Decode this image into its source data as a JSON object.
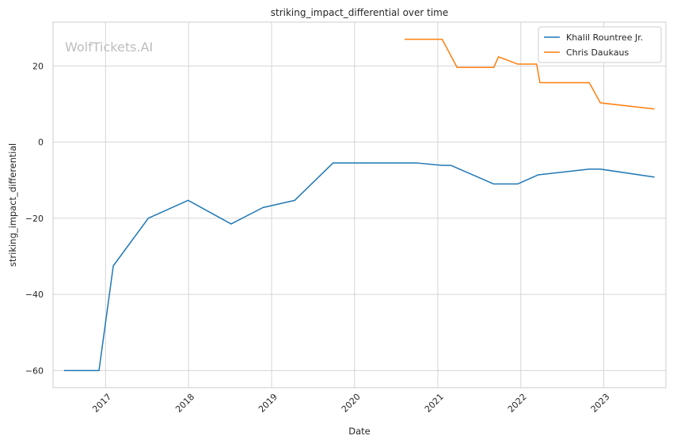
{
  "chart_data": {
    "type": "line",
    "title": "striking_impact_differential over time",
    "xlabel": "Date",
    "ylabel": "striking_impact_differential",
    "watermark": "WolfTickets.AI",
    "xlim": [
      "2016-05-15",
      "2023-10-01"
    ],
    "ylim": [
      -64.5,
      31.5
    ],
    "x_ticks": [
      "2017-01-01",
      "2018-01-01",
      "2019-01-01",
      "2020-01-01",
      "2021-01-01",
      "2022-01-01",
      "2023-01-01"
    ],
    "x_tick_labels": [
      "2017",
      "2018",
      "2019",
      "2020",
      "2021",
      "2022",
      "2023"
    ],
    "y_ticks": [
      -60,
      -40,
      -20,
      0,
      20
    ],
    "y_tick_labels": [
      "−60",
      "−40",
      "−20",
      "0",
      "20"
    ],
    "grid": true,
    "legend_position": "top-right",
    "colors": {
      "series_1": "#1f77b4",
      "series_2": "#ff7f0e",
      "grid": "#d5d5d5",
      "axes_edge": "#cccccc",
      "watermark": "#bdbdbd"
    },
    "series": [
      {
        "name": "Khalil Rountree Jr.",
        "points": [
          [
            "2016-07-02",
            -60.0
          ],
          [
            "2016-12-03",
            -60.0
          ],
          [
            "2017-02-04",
            -32.5
          ],
          [
            "2017-07-08",
            -20.0
          ],
          [
            "2017-12-30",
            -15.3
          ],
          [
            "2018-07-07",
            -21.5
          ],
          [
            "2018-11-24",
            -17.2
          ],
          [
            "2019-04-13",
            -15.3
          ],
          [
            "2019-09-28",
            -5.5
          ],
          [
            "2020-10-03",
            -5.5
          ],
          [
            "2021-01-20",
            -6.1
          ],
          [
            "2021-02-27",
            -6.1
          ],
          [
            "2021-09-04",
            -11.0
          ],
          [
            "2021-12-18",
            -11.0
          ],
          [
            "2022-03-19",
            -8.6
          ],
          [
            "2022-10-29",
            -7.1
          ],
          [
            "2022-12-17",
            -7.1
          ],
          [
            "2023-08-12",
            -9.2
          ]
        ]
      },
      {
        "name": "Chris Daukaus",
        "points": [
          [
            "2020-08-08",
            27.0
          ],
          [
            "2021-01-20",
            27.0
          ],
          [
            "2021-03-27",
            19.6
          ],
          [
            "2021-09-04",
            19.6
          ],
          [
            "2021-09-25",
            22.4
          ],
          [
            "2021-12-18",
            20.5
          ],
          [
            "2022-03-12",
            20.5
          ],
          [
            "2022-03-26",
            15.6
          ],
          [
            "2022-10-29",
            15.6
          ],
          [
            "2022-12-17",
            10.3
          ],
          [
            "2023-08-12",
            8.7
          ]
        ]
      }
    ]
  }
}
